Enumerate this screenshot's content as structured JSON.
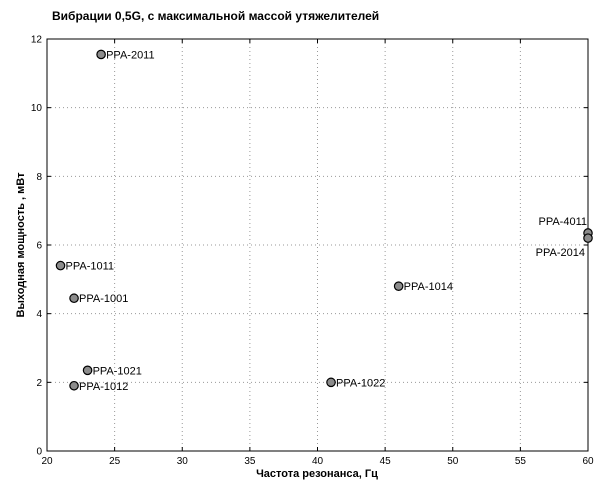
{
  "chart_data": {
    "type": "scatter",
    "title": "Вибрации 0,5G, с максимальной массой утяжелителей",
    "xlabel": "Частота резонанса, Гц",
    "ylabel": "Выходная мощность , мВт",
    "xlim": [
      20,
      60
    ],
    "ylim": [
      0,
      12
    ],
    "xticks": [
      20,
      25,
      30,
      35,
      40,
      45,
      50,
      55,
      60
    ],
    "yticks": [
      0,
      2,
      4,
      6,
      8,
      10,
      12
    ],
    "grid": true,
    "points": [
      {
        "label": "PPA-2011",
        "x": 24,
        "y": 11.55,
        "label_side": "right"
      },
      {
        "label": "PPA-1011",
        "x": 21,
        "y": 5.4,
        "label_side": "right"
      },
      {
        "label": "PPA-1001",
        "x": 22,
        "y": 4.45,
        "label_side": "right"
      },
      {
        "label": "PPA-1021",
        "x": 23,
        "y": 2.35,
        "label_side": "right"
      },
      {
        "label": "PPA-1012",
        "x": 22,
        "y": 1.9,
        "label_side": "right"
      },
      {
        "label": "PPA-1022",
        "x": 41,
        "y": 2.0,
        "label_side": "right"
      },
      {
        "label": "PPA-1014",
        "x": 46,
        "y": 4.8,
        "label_side": "right"
      },
      {
        "label": "PPA-4011",
        "x": 60,
        "y": 6.35,
        "label_side": "left-above"
      },
      {
        "label": "PPA-2014",
        "x": 60,
        "y": 6.2,
        "label_side": "left-below"
      }
    ],
    "colors": {
      "marker_fill": "#8c8c8c",
      "marker_edge": "#000000",
      "grid": "#9a9a9a"
    }
  }
}
